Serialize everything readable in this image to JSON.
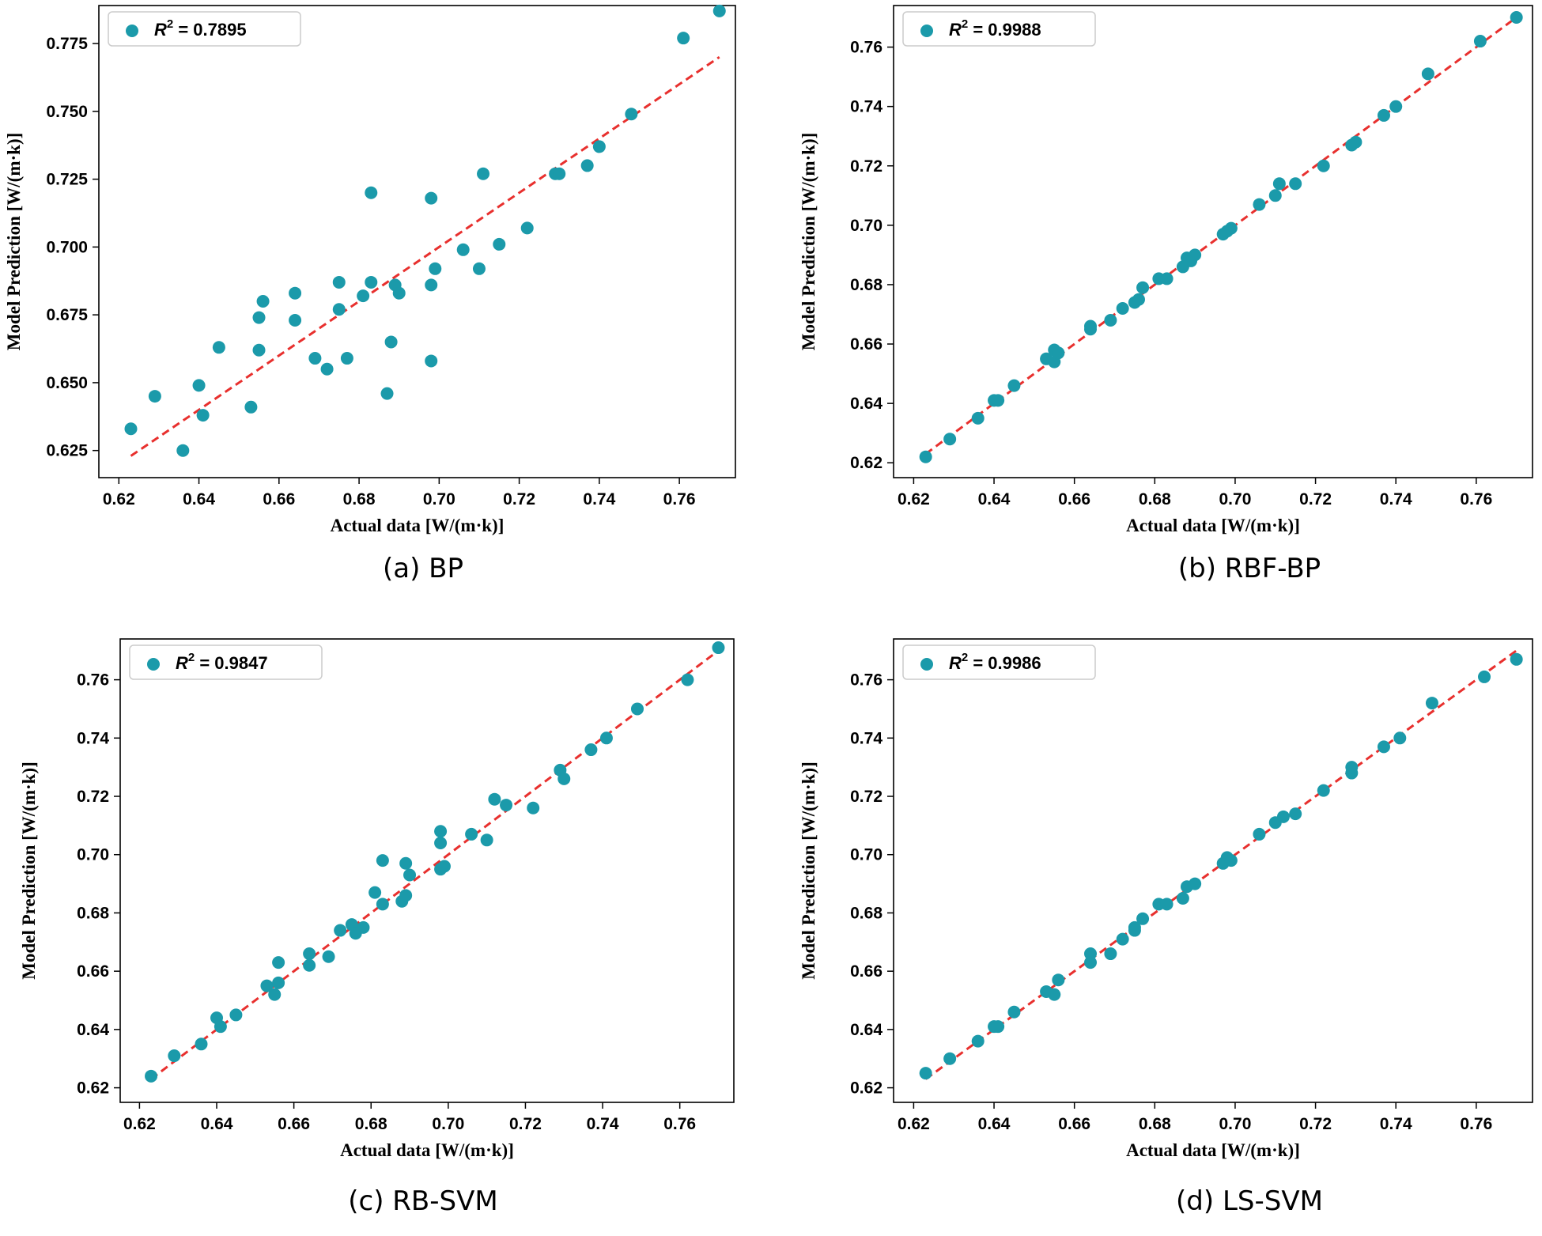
{
  "colors": {
    "point": "#1b9aaa",
    "fit_line": "#e8302e",
    "frame": "#000000",
    "background": "#ffffff"
  },
  "chart_data": [
    {
      "type": "scatter",
      "panel": "a",
      "caption": "(a) BP",
      "xlabel": "Actual data [W/(m·k)]",
      "ylabel": "Model Prediction [W/(m·k)]",
      "xlim": [
        0.615,
        0.774
      ],
      "ylim": [
        0.615,
        0.789
      ],
      "xticks": [
        0.62,
        0.64,
        0.66,
        0.68,
        0.7,
        0.72,
        0.74,
        0.76
      ],
      "xtick_labels": [
        "0.62",
        "0.64",
        "0.66",
        "0.68",
        "0.70",
        "0.72",
        "0.74",
        "0.76"
      ],
      "yticks": [
        0.625,
        0.65,
        0.675,
        0.7,
        0.725,
        0.75,
        0.775
      ],
      "ytick_labels": [
        "0.625",
        "0.650",
        "0.675",
        "0.700",
        "0.725",
        "0.750",
        "0.775"
      ],
      "legend": {
        "prefix": "R",
        "sup": "2",
        "value_text": " = 0.7895",
        "placement": "top-left"
      },
      "fit_line": {
        "x": [
          0.623,
          0.77
        ],
        "y": [
          0.623,
          0.77
        ]
      },
      "x": [
        0.623,
        0.629,
        0.636,
        0.64,
        0.641,
        0.645,
        0.653,
        0.655,
        0.655,
        0.656,
        0.664,
        0.664,
        0.669,
        0.672,
        0.675,
        0.675,
        0.677,
        0.681,
        0.683,
        0.683,
        0.687,
        0.688,
        0.689,
        0.69,
        0.698,
        0.698,
        0.698,
        0.699,
        0.706,
        0.71,
        0.711,
        0.715,
        0.722,
        0.729,
        0.73,
        0.737,
        0.74,
        0.748,
        0.761,
        0.77
      ],
      "y": [
        0.633,
        0.645,
        0.625,
        0.649,
        0.638,
        0.663,
        0.641,
        0.662,
        0.674,
        0.68,
        0.683,
        0.673,
        0.659,
        0.655,
        0.687,
        0.677,
        0.659,
        0.682,
        0.687,
        0.72,
        0.646,
        0.665,
        0.686,
        0.683,
        0.686,
        0.658,
        0.718,
        0.692,
        0.699,
        0.692,
        0.727,
        0.701,
        0.707,
        0.727,
        0.727,
        0.73,
        0.737,
        0.749,
        0.777,
        0.787
      ]
    },
    {
      "type": "scatter",
      "panel": "b",
      "caption": "(b) RBF-BP",
      "xlabel": "Actual data [W/(m·k)]",
      "ylabel": "Model Prediction [W/(m·k)]",
      "xlim": [
        0.615,
        0.774
      ],
      "ylim": [
        0.615,
        0.774
      ],
      "xticks": [
        0.62,
        0.64,
        0.66,
        0.68,
        0.7,
        0.72,
        0.74,
        0.76
      ],
      "xtick_labels": [
        "0.62",
        "0.64",
        "0.66",
        "0.68",
        "0.70",
        "0.72",
        "0.74",
        "0.76"
      ],
      "yticks": [
        0.62,
        0.64,
        0.66,
        0.68,
        0.7,
        0.72,
        0.74,
        0.76
      ],
      "ytick_labels": [
        "0.62",
        "0.64",
        "0.66",
        "0.68",
        "0.70",
        "0.72",
        "0.74",
        "0.76"
      ],
      "legend": {
        "prefix": "R",
        "sup": "2",
        "value_text": " = 0.9988",
        "placement": "top-left"
      },
      "fit_line": {
        "x": [
          0.623,
          0.77
        ],
        "y": [
          0.623,
          0.77
        ]
      },
      "x": [
        0.623,
        0.629,
        0.636,
        0.64,
        0.641,
        0.645,
        0.653,
        0.655,
        0.655,
        0.656,
        0.664,
        0.664,
        0.669,
        0.672,
        0.675,
        0.676,
        0.677,
        0.681,
        0.683,
        0.687,
        0.688,
        0.689,
        0.69,
        0.697,
        0.698,
        0.699,
        0.706,
        0.71,
        0.711,
        0.715,
        0.722,
        0.729,
        0.73,
        0.737,
        0.74,
        0.748,
        0.761,
        0.77
      ],
      "y": [
        0.622,
        0.628,
        0.635,
        0.641,
        0.641,
        0.646,
        0.655,
        0.654,
        0.658,
        0.657,
        0.666,
        0.665,
        0.668,
        0.672,
        0.674,
        0.675,
        0.679,
        0.682,
        0.682,
        0.686,
        0.689,
        0.688,
        0.69,
        0.697,
        0.698,
        0.699,
        0.707,
        0.71,
        0.714,
        0.714,
        0.72,
        0.727,
        0.728,
        0.737,
        0.74,
        0.751,
        0.762,
        0.77
      ]
    },
    {
      "type": "scatter",
      "panel": "c",
      "caption": "(c) RB-SVM",
      "xlabel": "Actual data [W/(m·k)]",
      "ylabel": "Model Prediction [W/(m·k)]",
      "xlim": [
        0.615,
        0.774
      ],
      "ylim": [
        0.615,
        0.774
      ],
      "xticks": [
        0.62,
        0.64,
        0.66,
        0.68,
        0.7,
        0.72,
        0.74,
        0.76
      ],
      "xtick_labels": [
        "0.62",
        "0.64",
        "0.66",
        "0.68",
        "0.70",
        "0.72",
        "0.74",
        "0.76"
      ],
      "yticks": [
        0.62,
        0.64,
        0.66,
        0.68,
        0.7,
        0.72,
        0.74,
        0.76
      ],
      "ytick_labels": [
        "0.62",
        "0.64",
        "0.66",
        "0.68",
        "0.70",
        "0.72",
        "0.74",
        "0.76"
      ],
      "legend": {
        "prefix": "R",
        "sup": "2",
        "value_text": " = 0.9847",
        "placement": "top-left"
      },
      "fit_line": {
        "x": [
          0.623,
          0.77
        ],
        "y": [
          0.623,
          0.77
        ]
      },
      "x": [
        0.623,
        0.629,
        0.636,
        0.64,
        0.641,
        0.645,
        0.653,
        0.655,
        0.656,
        0.656,
        0.664,
        0.664,
        0.669,
        0.672,
        0.675,
        0.676,
        0.678,
        0.681,
        0.683,
        0.683,
        0.688,
        0.689,
        0.689,
        0.69,
        0.698,
        0.698,
        0.698,
        0.699,
        0.706,
        0.71,
        0.712,
        0.715,
        0.722,
        0.729,
        0.73,
        0.737,
        0.741,
        0.749,
        0.762,
        0.77
      ],
      "y": [
        0.624,
        0.631,
        0.635,
        0.644,
        0.641,
        0.645,
        0.655,
        0.652,
        0.663,
        0.656,
        0.666,
        0.662,
        0.665,
        0.674,
        0.676,
        0.673,
        0.675,
        0.687,
        0.683,
        0.698,
        0.684,
        0.686,
        0.697,
        0.693,
        0.704,
        0.695,
        0.708,
        0.696,
        0.707,
        0.705,
        0.719,
        0.717,
        0.716,
        0.729,
        0.726,
        0.736,
        0.74,
        0.75,
        0.76,
        0.771
      ]
    },
    {
      "type": "scatter",
      "panel": "d",
      "caption": "(d) LS-SVM",
      "xlabel": "Actual data [W/(m·k)]",
      "ylabel": "Model Prediction [W/(m·k)]",
      "xlim": [
        0.615,
        0.774
      ],
      "ylim": [
        0.615,
        0.774
      ],
      "xticks": [
        0.62,
        0.64,
        0.66,
        0.68,
        0.7,
        0.72,
        0.74,
        0.76
      ],
      "xtick_labels": [
        "0.62",
        "0.64",
        "0.66",
        "0.68",
        "0.70",
        "0.72",
        "0.74",
        "0.76"
      ],
      "yticks": [
        0.62,
        0.64,
        0.66,
        0.68,
        0.7,
        0.72,
        0.74,
        0.76
      ],
      "ytick_labels": [
        "0.62",
        "0.64",
        "0.66",
        "0.68",
        "0.70",
        "0.72",
        "0.74",
        "0.76"
      ],
      "legend": {
        "prefix": "R",
        "sup": "2",
        "value_text": " = 0.9986",
        "placement": "top-left"
      },
      "fit_line": {
        "x": [
          0.623,
          0.77
        ],
        "y": [
          0.623,
          0.77
        ]
      },
      "x": [
        0.623,
        0.629,
        0.636,
        0.64,
        0.641,
        0.645,
        0.653,
        0.655,
        0.656,
        0.664,
        0.664,
        0.669,
        0.672,
        0.675,
        0.675,
        0.677,
        0.681,
        0.683,
        0.687,
        0.688,
        0.69,
        0.697,
        0.698,
        0.699,
        0.706,
        0.71,
        0.712,
        0.715,
        0.722,
        0.729,
        0.729,
        0.737,
        0.741,
        0.749,
        0.762,
        0.77
      ],
      "y": [
        0.625,
        0.63,
        0.636,
        0.641,
        0.641,
        0.646,
        0.653,
        0.652,
        0.657,
        0.666,
        0.663,
        0.666,
        0.671,
        0.675,
        0.674,
        0.678,
        0.683,
        0.683,
        0.685,
        0.689,
        0.69,
        0.697,
        0.699,
        0.698,
        0.707,
        0.711,
        0.713,
        0.714,
        0.722,
        0.728,
        0.73,
        0.737,
        0.74,
        0.752,
        0.761,
        0.767
      ]
    }
  ]
}
